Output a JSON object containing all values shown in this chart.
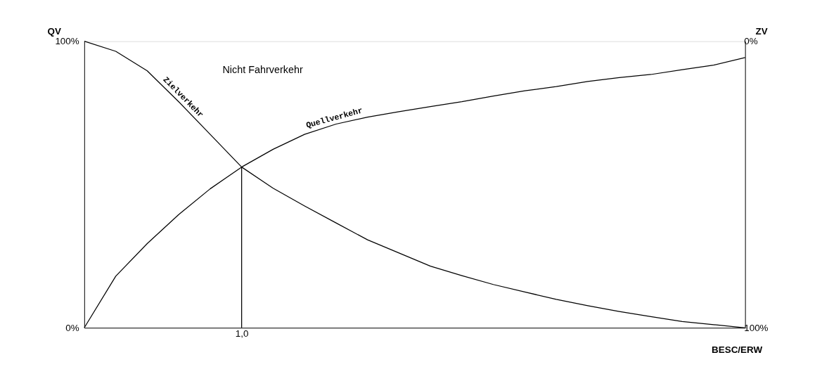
{
  "chart_data": {
    "type": "line",
    "xlabel": "BESC/ERW",
    "ylabel": "QV",
    "y2label": "ZV",
    "annotations": [
      "Nicht Fahrverkehr"
    ],
    "categories": [
      null,
      null,
      null,
      null,
      null,
      "1,0",
      null,
      null,
      null,
      null,
      null,
      null,
      null,
      null,
      null,
      null,
      null,
      null,
      null,
      null,
      null,
      null
    ],
    "ylim": [
      0,
      100
    ],
    "yticks": [
      {
        "value": 0,
        "label": "0%"
      },
      {
        "value": 100,
        "label": "100%"
      }
    ],
    "y2lim": [
      100,
      0
    ],
    "y2ticks": [
      {
        "value": 0,
        "label": "0%"
      },
      {
        "value": 100,
        "label": "100%"
      }
    ],
    "ref_lines": [
      {
        "axis": "x",
        "value": "1,0",
        "color": "#000000"
      }
    ],
    "legend": false,
    "grid": false,
    "marker": "none",
    "line_style": "solid",
    "series": [
      {
        "name": "Quellverkehr",
        "color": "#000000",
        "values": [
          0,
          18.0,
          29.4,
          39.5,
          48.5,
          56.1,
          62.3,
          67.5,
          71.1,
          73.5,
          75.4,
          77.2,
          78.9,
          80.9,
          82.7,
          84.2,
          86.0,
          87.3,
          88.4,
          90.1,
          91.7,
          94.3
        ]
      },
      {
        "name": "Zielverkehr",
        "color": "#000000",
        "axis": "y2",
        "values": [
          0,
          3.5,
          10.3,
          21.1,
          32.5,
          43.9,
          51.3,
          57.5,
          63.4,
          69.3,
          73.9,
          78.5,
          81.8,
          84.9,
          87.5,
          90.1,
          92.3,
          94.3,
          96.1,
          97.8,
          98.9,
          100
        ]
      }
    ]
  }
}
